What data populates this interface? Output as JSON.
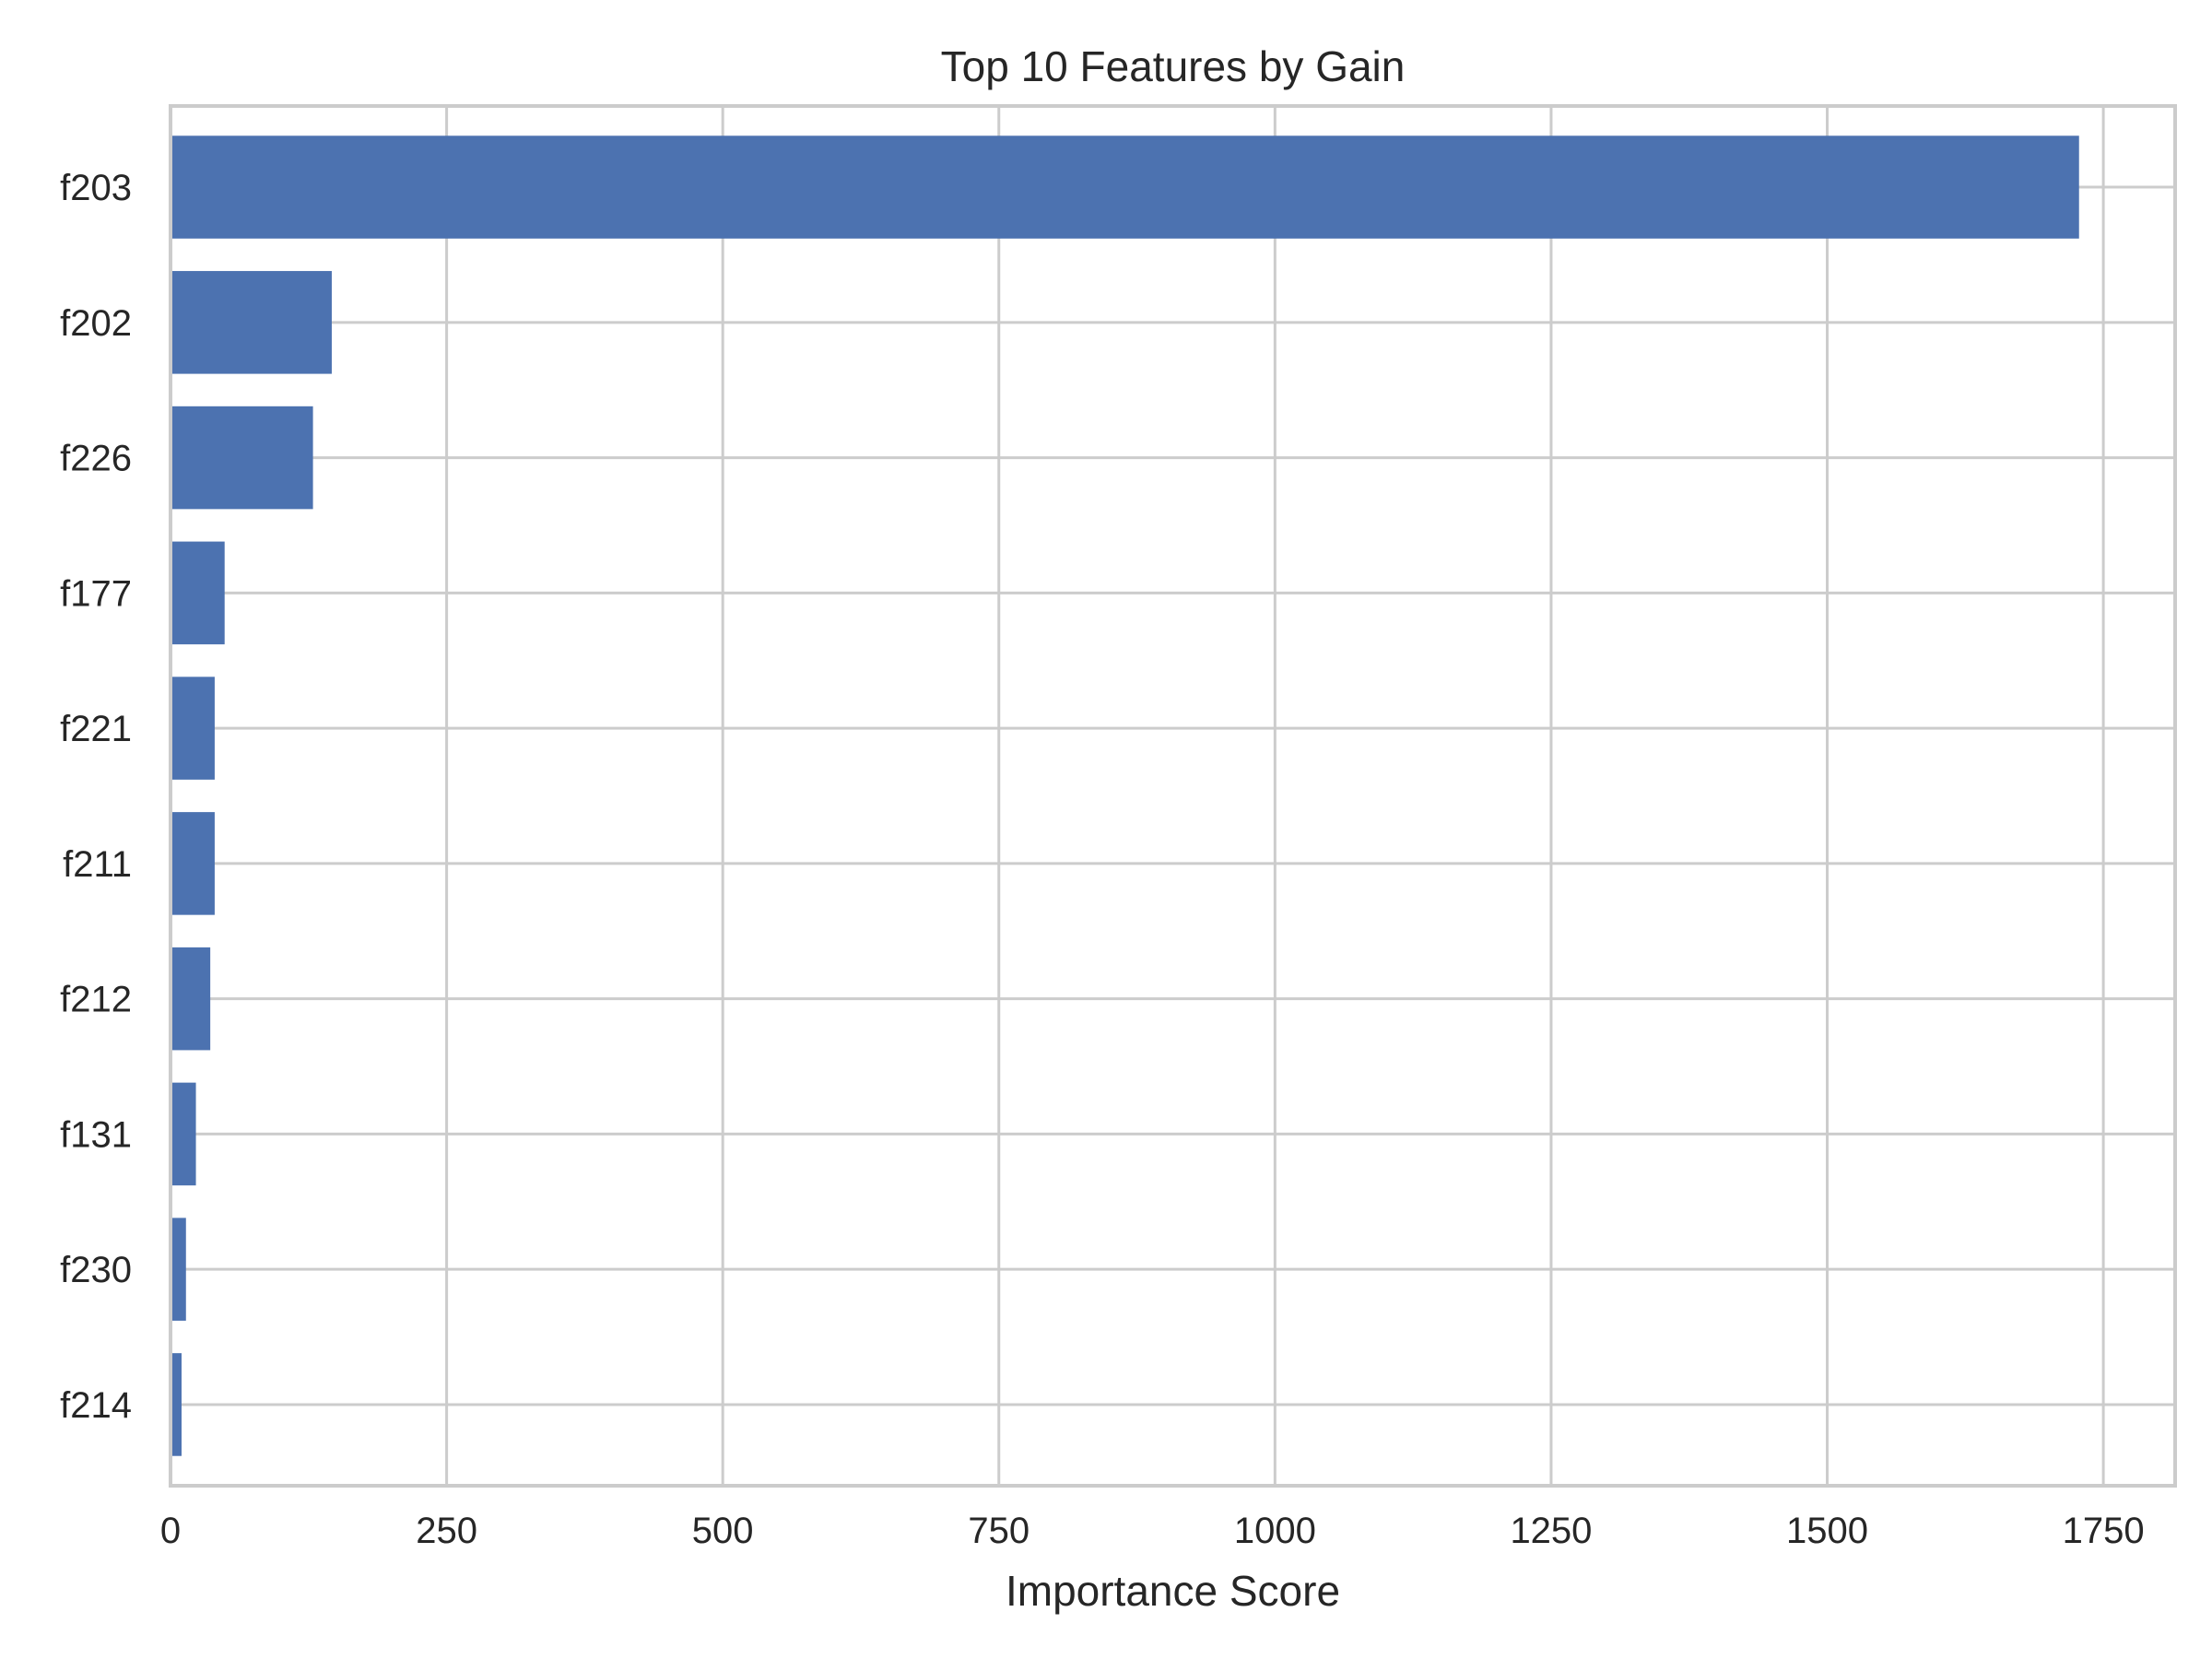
{
  "chart_data": {
    "type": "bar",
    "orientation": "horizontal",
    "title": "Top 10 Features by Gain",
    "xlabel": "Importance Score",
    "ylabel": "",
    "categories": [
      "f203",
      "f202",
      "f226",
      "f177",
      "f221",
      "f211",
      "f212",
      "f131",
      "f230",
      "f214"
    ],
    "values": [
      1728,
      146,
      129,
      49,
      40,
      40,
      36,
      23,
      14,
      10
    ],
    "xlim": [
      0,
      1815
    ],
    "xticks": [
      0,
      250,
      500,
      750,
      1000,
      1250,
      1500,
      1750
    ],
    "xtick_labels": [
      "0",
      "250",
      "500",
      "750",
      "1000",
      "1250",
      "1500",
      "1750"
    ],
    "grid": true,
    "bar_color": "#4c72b0",
    "grid_color": "#cccccc",
    "spine_color": "#cccccc"
  }
}
